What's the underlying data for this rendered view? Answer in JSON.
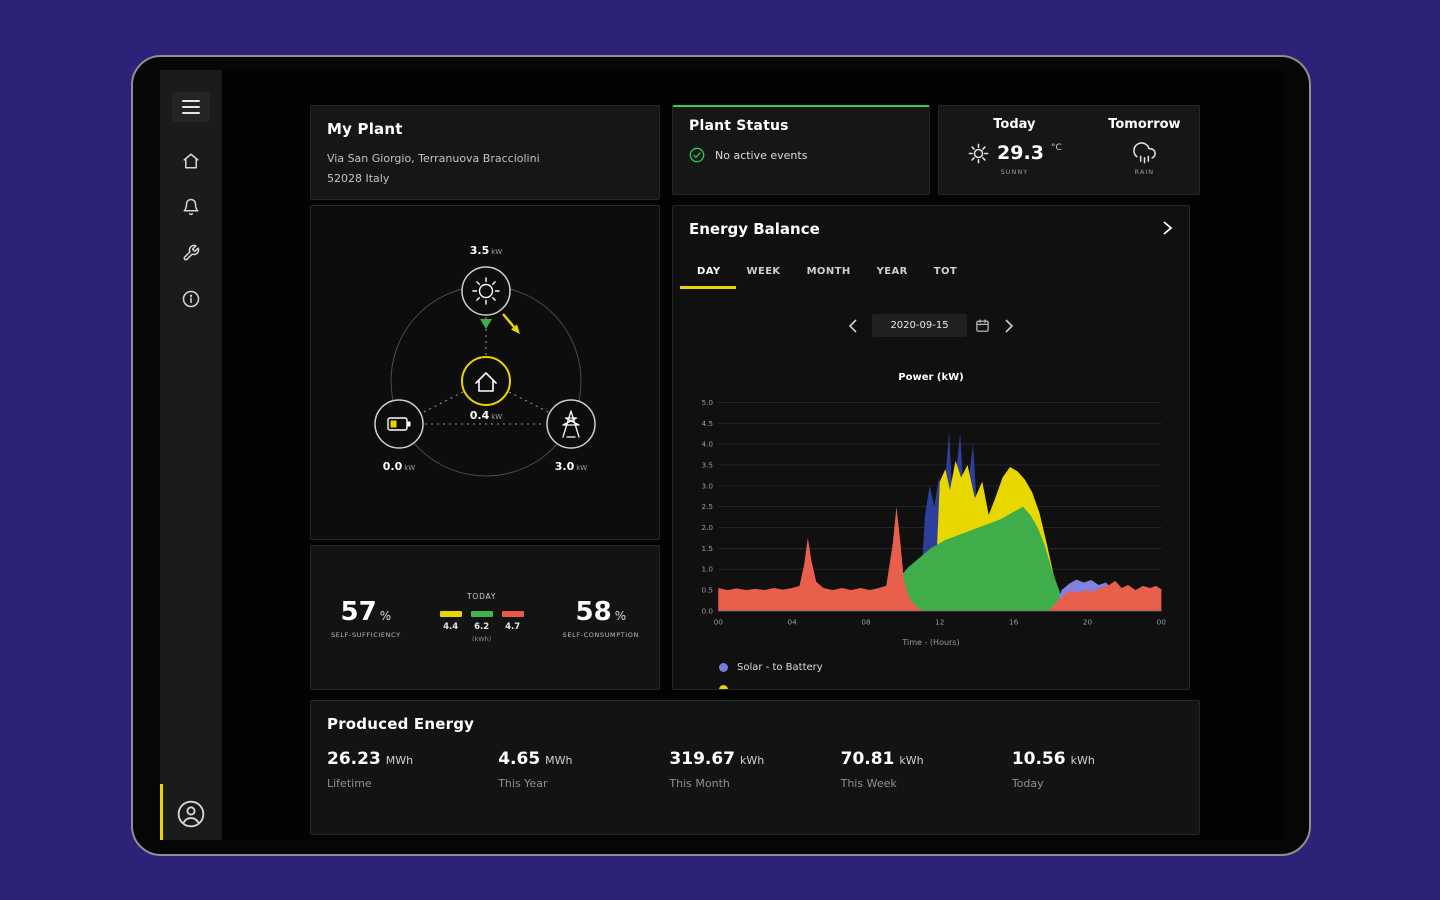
{
  "sidebar": {
    "icons": [
      "menu",
      "home",
      "alerts",
      "settings",
      "info",
      "profile"
    ]
  },
  "plant": {
    "title": "My Plant",
    "address1": "Via San Giorgio, Terranuova Bracciolini",
    "address2": "52028 Italy"
  },
  "status": {
    "title": "Plant Status",
    "message": "No active events",
    "accent": "#2ecc55"
  },
  "weather": {
    "today_label": "Today",
    "temp_value": "29.3",
    "temp_unit": "°C",
    "today_condition": "SUNNY",
    "tomorrow_label": "Tomorrow",
    "tomorrow_condition": "RAIN"
  },
  "flow": {
    "solar_value": "3.5",
    "solar_unit": "kW",
    "home_value": "0.4",
    "home_unit": "kW",
    "battery_value": "0.0",
    "battery_unit": "kW",
    "grid_value": "3.0",
    "grid_unit": "kW"
  },
  "selfbox": {
    "sufficiency_value": "57",
    "sufficiency_unit": "%",
    "sufficiency_label": "SELF-SUFFICIENCY",
    "today_label": "TODAY",
    "bars": [
      {
        "color": "#e8d500",
        "value": "4.4"
      },
      {
        "color": "#43b24d",
        "value": "6.2"
      },
      {
        "color": "#e85a4a",
        "value": "4.7"
      }
    ],
    "bars_unit": "(kWh)",
    "consumption_value": "58",
    "consumption_unit": "%",
    "consumption_label": "SELF-CONSUMPTION"
  },
  "balance": {
    "title": "Energy Balance",
    "tabs": [
      "DAY",
      "WEEK",
      "MONTH",
      "YEAR",
      "TOT"
    ],
    "active_tab": "DAY",
    "date": "2020-09-15",
    "legend": [
      {
        "label": "Solar - to Battery",
        "color": "#7b7bdb"
      }
    ],
    "legend_partial_color": "#e8d500",
    "accent": "#e8d500"
  },
  "chart_data": {
    "type": "area",
    "title": "Power (kW)",
    "xlabel": "Time - (Hours)",
    "xlim": [
      0,
      24
    ],
    "ylim": [
      0,
      5
    ],
    "grid": "horizontal",
    "x_ticks": [
      {
        "pos": 0,
        "label": "00"
      },
      {
        "pos": 4,
        "label": "04"
      },
      {
        "pos": 8,
        "label": "08"
      },
      {
        "pos": 12,
        "label": "12"
      },
      {
        "pos": 16,
        "label": "16"
      },
      {
        "pos": 20,
        "label": "20"
      },
      {
        "pos": 24,
        "label": "00"
      }
    ],
    "y_ticks": [
      {
        "pos": 0,
        "label": "0.0"
      },
      {
        "pos": 0.5,
        "label": "0.5"
      },
      {
        "pos": 1,
        "label": "1.0"
      },
      {
        "pos": 1.5,
        "label": "1.5"
      },
      {
        "pos": 2,
        "label": "2.0"
      },
      {
        "pos": 2.5,
        "label": "2.5"
      },
      {
        "pos": 3,
        "label": "3.0"
      },
      {
        "pos": 3.5,
        "label": "3.5"
      },
      {
        "pos": 4,
        "label": "4.0"
      },
      {
        "pos": 4.5,
        "label": "4.5"
      },
      {
        "pos": 5,
        "label": "5.0"
      }
    ],
    "series": [
      {
        "name": "solar-to-battery-blue",
        "color": "#2e3f9b",
        "points": [
          [
            10.9,
            0
          ],
          [
            11.2,
            2.3
          ],
          [
            11.45,
            3.0
          ],
          [
            11.7,
            2.5
          ],
          [
            11.95,
            3.2
          ],
          [
            12.2,
            2.6
          ],
          [
            12.5,
            4.3
          ],
          [
            12.7,
            2.6
          ],
          [
            13.1,
            4.25
          ],
          [
            13.35,
            2.4
          ],
          [
            13.8,
            4.0
          ],
          [
            14.1,
            1.8
          ],
          [
            14.5,
            2.4
          ],
          [
            14.9,
            0
          ]
        ]
      },
      {
        "name": "solar-production-yellow",
        "color": "#e8d800",
        "points": [
          [
            11.7,
            0
          ],
          [
            12.0,
            3.1
          ],
          [
            12.3,
            3.4
          ],
          [
            12.55,
            2.9
          ],
          [
            12.85,
            3.6
          ],
          [
            13.15,
            3.2
          ],
          [
            13.5,
            3.5
          ],
          [
            13.9,
            2.7
          ],
          [
            14.3,
            3.1
          ],
          [
            14.65,
            2.3
          ],
          [
            15.0,
            2.7
          ],
          [
            15.4,
            3.2
          ],
          [
            15.8,
            3.45
          ],
          [
            16.2,
            3.35
          ],
          [
            16.6,
            3.15
          ],
          [
            17.0,
            2.85
          ],
          [
            17.4,
            2.35
          ],
          [
            17.8,
            1.6
          ],
          [
            18.2,
            0.8
          ],
          [
            18.6,
            0
          ]
        ]
      },
      {
        "name": "self-consumption-green",
        "color": "#3fae4a",
        "points": [
          [
            8.4,
            0
          ],
          [
            8.7,
            0.35
          ],
          [
            9.1,
            0.55
          ],
          [
            9.5,
            0.7
          ],
          [
            9.9,
            0.85
          ],
          [
            10.3,
            1.05
          ],
          [
            10.7,
            1.2
          ],
          [
            11.1,
            1.35
          ],
          [
            11.5,
            1.5
          ],
          [
            11.9,
            1.6
          ],
          [
            12.3,
            1.7
          ],
          [
            12.9,
            1.8
          ],
          [
            13.5,
            1.9
          ],
          [
            14.1,
            2.0
          ],
          [
            14.7,
            2.1
          ],
          [
            15.3,
            2.2
          ],
          [
            15.9,
            2.35
          ],
          [
            16.5,
            2.5
          ],
          [
            16.9,
            2.3
          ],
          [
            17.3,
            2.0
          ],
          [
            17.7,
            1.55
          ],
          [
            18.1,
            0.95
          ],
          [
            18.5,
            0.45
          ],
          [
            18.8,
            0
          ]
        ]
      },
      {
        "name": "from-battery-purple",
        "color": "#8181de",
        "points": [
          [
            18.2,
            0
          ],
          [
            18.6,
            0.5
          ],
          [
            19.0,
            0.65
          ],
          [
            19.4,
            0.75
          ],
          [
            19.8,
            0.68
          ],
          [
            20.2,
            0.74
          ],
          [
            20.6,
            0.62
          ],
          [
            21.0,
            0.68
          ],
          [
            21.4,
            0.48
          ],
          [
            21.8,
            0.25
          ],
          [
            22.2,
            0.1
          ],
          [
            22.6,
            0
          ]
        ]
      },
      {
        "name": "consumption-red",
        "color": "#e8604c",
        "points": [
          [
            0,
            0.55
          ],
          [
            0.5,
            0.5
          ],
          [
            1,
            0.54
          ],
          [
            1.5,
            0.5
          ],
          [
            2,
            0.53
          ],
          [
            2.5,
            0.5
          ],
          [
            3,
            0.55
          ],
          [
            3.5,
            0.51
          ],
          [
            4,
            0.55
          ],
          [
            4.4,
            0.6
          ],
          [
            4.65,
            1.1
          ],
          [
            4.85,
            1.75
          ],
          [
            5.05,
            1.2
          ],
          [
            5.3,
            0.7
          ],
          [
            5.7,
            0.55
          ],
          [
            6.2,
            0.5
          ],
          [
            6.7,
            0.55
          ],
          [
            7.2,
            0.5
          ],
          [
            7.7,
            0.55
          ],
          [
            8.2,
            0.5
          ],
          [
            8.7,
            0.55
          ],
          [
            9.1,
            0.6
          ],
          [
            9.45,
            1.6
          ],
          [
            9.65,
            2.5
          ],
          [
            9.85,
            1.7
          ],
          [
            10.05,
            0.75
          ],
          [
            10.35,
            0.3
          ],
          [
            10.7,
            0.12
          ],
          [
            11.1,
            0
          ],
          [
            17.9,
            0
          ],
          [
            18.3,
            0.2
          ],
          [
            18.7,
            0.38
          ],
          [
            19.1,
            0.48
          ],
          [
            19.5,
            0.44
          ],
          [
            19.9,
            0.5
          ],
          [
            20.3,
            0.46
          ],
          [
            20.7,
            0.55
          ],
          [
            21.1,
            0.6
          ],
          [
            21.5,
            0.72
          ],
          [
            21.85,
            0.55
          ],
          [
            22.2,
            0.62
          ],
          [
            22.6,
            0.5
          ],
          [
            23.0,
            0.6
          ],
          [
            23.4,
            0.55
          ],
          [
            23.7,
            0.6
          ],
          [
            24,
            0.52
          ]
        ]
      }
    ]
  },
  "produced": {
    "title": "Produced Energy",
    "stats": [
      {
        "value": "26.23",
        "unit": "MWh",
        "label": "Lifetime"
      },
      {
        "value": "4.65",
        "unit": "MWh",
        "label": "This Year"
      },
      {
        "value": "319.67",
        "unit": "kWh",
        "label": "This Month"
      },
      {
        "value": "70.81",
        "unit": "kWh",
        "label": "This Week"
      },
      {
        "value": "10.56",
        "unit": "kWh",
        "label": "Today"
      }
    ]
  }
}
